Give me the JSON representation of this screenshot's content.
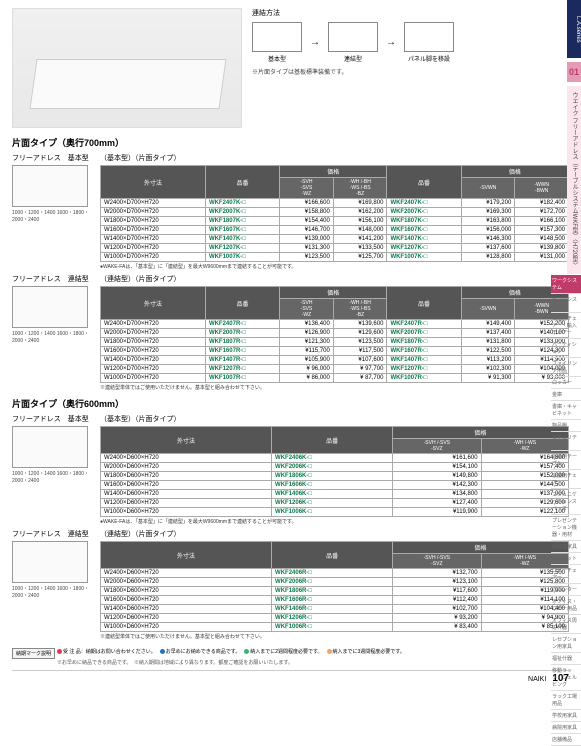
{
  "sidebar": {
    "tab": "L.A.series",
    "num": "01",
    "title": "ウエイク フリーアドレス（テーブルシステムWKF型）〈H720型〉",
    "brand": "NAIKI",
    "categories": [
      "ワークシステム",
      "デスクシステム",
      "事務用チェアー・輸入チェアー",
      "パーティション",
      "ファイリング用品",
      "ロッカー",
      "金庫",
      "書庫・キャビネット",
      "物品棚",
      "セキュリティ用品",
      "会議用テーブル",
      "会議用チェアー",
      "コミュニケーションスペース",
      "プレゼンテーション機器・用材",
      "役員室家具",
      "応接セット",
      "ロビーチェアー",
      "カウンター",
      "オフィス・ロビー用品",
      "オフィス周辺什器",
      "レセプション用家具",
      "福祉什器",
      "移動ラック・シェルビング",
      "ラック工場用品",
      "学校用家具",
      "病院用家具",
      "店舗備品"
    ],
    "active_cat_index": 0
  },
  "hero": {
    "connect_title": "連結方法",
    "labels": [
      "基本型",
      "連結型"
    ],
    "panel_note": "パネル脚を移設",
    "note": "※片面タイプは基板標準装備です。"
  },
  "section1": {
    "title": "片面タイプ（奥行700mm）",
    "basic": {
      "left_label": "フリーアドレス　基本型",
      "dims": "1000・1200・1400\n1600・1800・2000・2400",
      "dim_h": "720",
      "dim_d": "700",
      "sub_header": "（基本型）（片面タイプ）",
      "headers": {
        "dim": "外寸法",
        "code": "品番",
        "price": "価格",
        "sub1": "-SVH\n-SVS\n-WZ",
        "sub2": "-WH /-BH\n-WS /-BS\n-BZ",
        "code2": "品番",
        "sub3": "-SVWN",
        "sub4": "-WWN\n-BWN"
      },
      "colors": {
        "square1": "#f5a623",
        "square2": "#c13b6a"
      },
      "rows": [
        {
          "dim": "W2400×D700×H720",
          "code": "WKF2407K-□",
          "p1": "¥166,600",
          "p2": "¥169,800",
          "code2": "WKF2407K-□",
          "p3": "¥179,200",
          "p4": "¥182,400"
        },
        {
          "dim": "W2000×D700×H720",
          "code": "WKF2007K-□",
          "p1": "¥158,800",
          "p2": "¥162,200",
          "code2": "WKF2007K-□",
          "p3": "¥169,300",
          "p4": "¥172,700"
        },
        {
          "dim": "W1800×D700×H720",
          "code": "WKF1807K-□",
          "p1": "¥154,400",
          "p2": "¥156,100",
          "code2": "WKF1807K-□",
          "p3": "¥163,800",
          "p4": "¥166,100"
        },
        {
          "dim": "W1600×D700×H720",
          "code": "WKF1607K-□",
          "p1": "¥146,700",
          "p2": "¥148,000",
          "code2": "WKF1607K-□",
          "p3": "¥156,000",
          "p4": "¥157,300"
        },
        {
          "dim": "W1400×D700×H720",
          "code": "WKF1407K-□",
          "p1": "¥139,000",
          "p2": "¥141,200",
          "code2": "WKF1407K-□",
          "p3": "¥146,300",
          "p4": "¥148,500"
        },
        {
          "dim": "W1200×D700×H720",
          "code": "WKF1207K-□",
          "p1": "¥131,300",
          "p2": "¥133,500",
          "code2": "WKF1207K-□",
          "p3": "¥137,600",
          "p4": "¥139,800"
        },
        {
          "dim": "W1000×D700×H720",
          "code": "WKF1007K-□",
          "p1": "¥123,500",
          "p2": "¥125,700",
          "code2": "WKF1007K-□",
          "p3": "¥128,800",
          "p4": "¥131,000"
        }
      ],
      "note": "●WAKE-FAは、「基本型」に「連結型」を最大W9600mmまで連結することが可能です。"
    },
    "link": {
      "left_label": "フリーアドレス　連結型",
      "dims": "1000・1200・1400\n1600・1800・2000・2400",
      "dim_h": "720",
      "dim_d": "700",
      "range_label": "有効奥行寸法\n305mm",
      "sub_header": "（連結型）（片面タイプ）",
      "rows": [
        {
          "dim": "W2400×D700×H720",
          "code": "WKF2407R-□",
          "p1": "¥136,400",
          "p2": "¥139,600",
          "code2": "WKF2407R-□",
          "p3": "¥149,400",
          "p4": "¥152,200"
        },
        {
          "dim": "W2000×D700×H720",
          "code": "WKF2007R-□",
          "p1": "¥126,900",
          "p2": "¥129,600",
          "code2": "WKF2007R-□",
          "p3": "¥137,400",
          "p4": "¥140,100"
        },
        {
          "dim": "W1800×D700×H720",
          "code": "WKF1807R-□",
          "p1": "¥121,300",
          "p2": "¥123,500",
          "code2": "WKF1807R-□",
          "p3": "¥131,800",
          "p4": "¥133,000"
        },
        {
          "dim": "W1600×D700×H720",
          "code": "WKF1607R-□",
          "p1": "¥115,700",
          "p2": "¥117,500",
          "code2": "WKF1607R-□",
          "p3": "¥122,500",
          "p4": "¥124,300"
        },
        {
          "dim": "W1400×D700×H720",
          "code": "WKF1407R-□",
          "p1": "¥105,900",
          "p2": "¥107,600",
          "code2": "WKF1407R-□",
          "p3": "¥113,200",
          "p4": "¥114,900"
        },
        {
          "dim": "W1200×D700×H720",
          "code": "WKF1207R-□",
          "p1": "¥ 96,000",
          "p2": "¥ 97,700",
          "code2": "WKF1207R-□",
          "p3": "¥102,300",
          "p4": "¥104,000"
        },
        {
          "dim": "W1000×D700×H720",
          "code": "WKF1007R-□",
          "p1": "¥ 86,000",
          "p2": "¥ 87,700",
          "code2": "WKF1007R-□",
          "p3": "¥ 91,300",
          "p4": "¥ 93,000"
        }
      ],
      "note": "※連結型単体ではご使用いただけません。基本型と組み合わせて下さい。"
    }
  },
  "section2": {
    "title": "片面タイプ（奥行600mm）",
    "basic": {
      "left_label": "フリーアドレス　基本型",
      "dims": "1000・1200・1400\n1600・1800・2000・2400",
      "dim_h": "720",
      "sub_header": "（基本型）（片面タイプ）",
      "headers": {
        "dim": "外寸法",
        "code": "品番",
        "price": "価格",
        "sub1": "-SVH /-SVS\n-SVZ",
        "sub2": "-WH /-WS\n-WZ"
      },
      "rows": [
        {
          "dim": "W2400×D600×H720",
          "code": "WKF2406K-□",
          "p1": "¥161,600",
          "p2": "¥164,800"
        },
        {
          "dim": "W2000×D600×H720",
          "code": "WKF2006K-□",
          "p1": "¥154,100",
          "p2": "¥157,400"
        },
        {
          "dim": "W1800×D600×H720",
          "code": "WKF1806K-□",
          "p1": "¥149,800",
          "p2": "¥152,000"
        },
        {
          "dim": "W1600×D600×H720",
          "code": "WKF1606K-□",
          "p1": "¥142,300",
          "p2": "¥144,500"
        },
        {
          "dim": "W1400×D600×H720",
          "code": "WKF1406K-□",
          "p1": "¥134,800",
          "p2": "¥137,000"
        },
        {
          "dim": "W1200×D600×H720",
          "code": "WKF1206K-□",
          "p1": "¥127,400",
          "p2": "¥129,600"
        },
        {
          "dim": "W1000×D600×H720",
          "code": "WKF1006K-□",
          "p1": "¥119,900",
          "p2": "¥122,100"
        }
      ],
      "note": "●WAKE-FAは、「基本型」に「連結型」を最大W9600mmまで連結することが可能です。"
    },
    "link": {
      "left_label": "フリーアドレス　連結型",
      "dims": "1000・1200・1400\n1600・1800・2000・2400",
      "dim_h": "720",
      "dim_d": "600",
      "range_label": "有効奥行寸法\n255mm",
      "sub_header": "（連結型）（片面タイプ）",
      "rows": [
        {
          "dim": "W2400×D600×H720",
          "code": "WKF2406R-□",
          "p1": "¥132,700",
          "p2": "¥135,500"
        },
        {
          "dim": "W2000×D600×H720",
          "code": "WKF2006R-□",
          "p1": "¥123,100",
          "p2": "¥125,800"
        },
        {
          "dim": "W1800×D600×H720",
          "code": "WKF1806R-□",
          "p1": "¥117,600",
          "p2": "¥119,900"
        },
        {
          "dim": "W1600×D600×H720",
          "code": "WKF1606R-□",
          "p1": "¥112,400",
          "p2": "¥114,100"
        },
        {
          "dim": "W1400×D600×H720",
          "code": "WKF1406R-□",
          "p1": "¥102,700",
          "p2": "¥104,400"
        },
        {
          "dim": "W1200×D600×H720",
          "code": "WKF1206R-□",
          "p1": "¥ 93,200",
          "p2": "¥ 94,900"
        },
        {
          "dim": "W1000×D600×H720",
          "code": "WKF1006R-□",
          "p1": "¥ 83,400",
          "p2": "¥ 85,100"
        }
      ],
      "note": "※連結型単体ではご使用いただけません。基本型と組み合わせて下さい。"
    }
  },
  "legend": {
    "label": "納期マーク説明",
    "items": [
      {
        "color": "#e63946",
        "text": "受 注 品：納期はお問い合わせください。"
      },
      {
        "color": "#2a6ebb",
        "text": "お早めにお納めできる商品です。"
      },
      {
        "color": "#3cb371",
        "text": "納入までに2週間程度必要です。"
      },
      {
        "color": "#f4a261",
        "text": "納入までに3週間程度必要です。"
      }
    ],
    "note": "※お早めに納品できる商品です。　※納入期間は地域により異なります。都度ご確認をお願いいたします。"
  },
  "footer": {
    "brand": "NAIKI",
    "page": "107"
  }
}
